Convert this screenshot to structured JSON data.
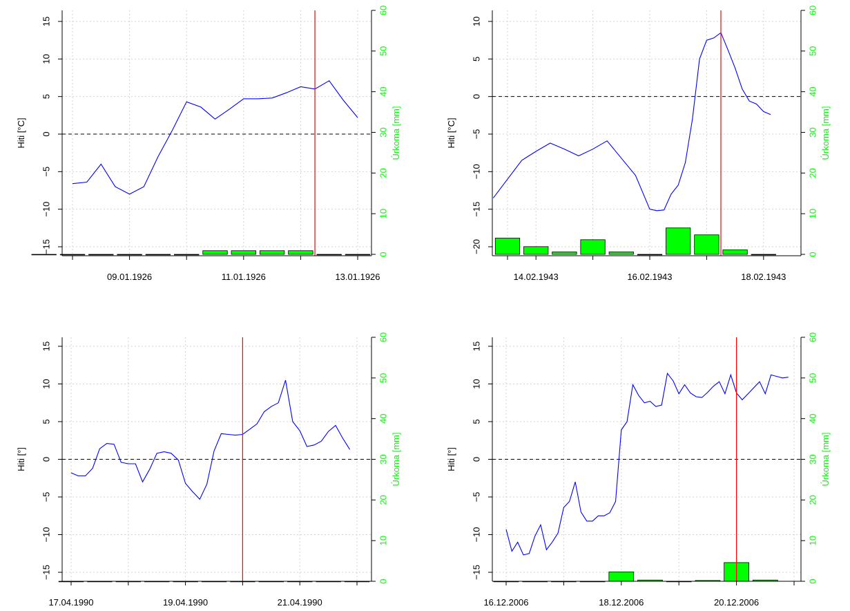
{
  "colors": {
    "temperature_line": "#0000ff",
    "precipitation_bar": "#00ff00",
    "precipitation_axis": "#00ff00",
    "event_marker": "#ff0000",
    "zero_line": "#000000",
    "grid": "#d3d3d3"
  },
  "chart_data": [
    {
      "type": "line",
      "ylabel": "Hiti [°C]",
      "y2label": "Úrkoma [mm]",
      "xlim": [
        0,
        60
      ],
      "ylim": [
        -16,
        16
      ],
      "y2lim": [
        0,
        60
      ],
      "xticks": [
        {
          "x": 12,
          "label": "09.01.1926"
        },
        {
          "x": 36,
          "label": "11.01.1926"
        },
        {
          "x": 60,
          "label": "13.01.1926"
        }
      ],
      "xgrid": [
        0,
        12,
        24,
        36,
        48,
        60
      ],
      "yticks": [
        -15,
        -10,
        -5,
        0,
        5,
        10,
        15
      ],
      "y2ticks": [
        0,
        10,
        20,
        30,
        40,
        50,
        60
      ],
      "marker_x": 51,
      "grid": true,
      "temperature": {
        "x": [
          0,
          3,
          6,
          9,
          12,
          15,
          18,
          21,
          24,
          27,
          30,
          33,
          36,
          39,
          42,
          45,
          48,
          51,
          54,
          57,
          60
        ],
        "y": [
          -6.6,
          -6.4,
          -4,
          -7,
          -8,
          -7,
          -3,
          0.5,
          4.3,
          3.6,
          2,
          3.3,
          4.7,
          4.7,
          4.8,
          5.5,
          6.3,
          6,
          7.1,
          4.5,
          2.2
        ]
      },
      "precipitation": {
        "x": [
          -6,
          0,
          6,
          12,
          18,
          24,
          30,
          36,
          42,
          48,
          54,
          60
        ],
        "y": [
          0,
          0,
          0,
          0,
          0,
          0,
          0.9,
          0.9,
          0.9,
          0.9,
          0,
          0
        ]
      }
    },
    {
      "type": "line",
      "ylabel": "Hiti [°C]",
      "y2label": "Úrkoma [mm]",
      "xlim": [
        0,
        60
      ],
      "ylim": [
        -21,
        11
      ],
      "y2lim": [
        0,
        60
      ],
      "xticks": [
        {
          "x": 6,
          "label": "14.02.1943"
        },
        {
          "x": 30,
          "label": "16.02.1943"
        },
        {
          "x": 54,
          "label": "18.02.1943"
        }
      ],
      "xgrid": [
        0,
        6,
        18,
        30,
        42,
        54
      ],
      "yticks": [
        -20,
        -15,
        -10,
        -5,
        0,
        5,
        10
      ],
      "y2ticks": [
        0,
        10,
        20,
        30,
        40,
        50,
        60
      ],
      "marker_x": 45,
      "grid": true,
      "temperature": {
        "x": [
          -3,
          0,
          3,
          6,
          9,
          12,
          15,
          18,
          21,
          24,
          27,
          30,
          31.5,
          33,
          34.5,
          36,
          37.5,
          39,
          40.5,
          42,
          43.5,
          45,
          46.5,
          48,
          49.5,
          51,
          52.5,
          54,
          55.5
        ],
        "y": [
          -13.5,
          -11,
          -8.5,
          -7.3,
          -6.2,
          -7,
          -7.9,
          -7,
          -5.9,
          -8.2,
          -10.5,
          -15,
          -15.2,
          -15.1,
          -13,
          -11.8,
          -8.8,
          -3,
          5,
          7.5,
          7.8,
          8.5,
          6.2,
          3.8,
          1,
          -0.6,
          -1,
          -2,
          -2.4
        ]
      },
      "precipitation": {
        "x": [
          0,
          6,
          12,
          18,
          24,
          30,
          36,
          42,
          48,
          54
        ],
        "y": [
          4,
          1.9,
          0.6,
          3.6,
          0.6,
          0,
          6.5,
          4.8,
          1.1,
          0
        ]
      }
    },
    {
      "type": "line",
      "ylabel": "Hiti [°]",
      "y2label": "Úrkoma [mm]",
      "xlim": [
        0,
        60
      ],
      "ylim": [
        -16,
        16
      ],
      "y2lim": [
        0,
        60
      ],
      "xticks": [
        {
          "x": 0,
          "label": "17.04.1990"
        },
        {
          "x": 24,
          "label": "19.04.1990"
        },
        {
          "x": 48,
          "label": "21.04.1990"
        }
      ],
      "xgrid": [
        0,
        12,
        24,
        36,
        48,
        60
      ],
      "yticks": [
        -15,
        -10,
        -5,
        0,
        5,
        10,
        15
      ],
      "y2ticks": [
        0,
        10,
        20,
        30,
        40,
        50,
        60
      ],
      "marker_x": 36,
      "grid": true,
      "temperature": {
        "x": [
          0,
          1.5,
          3,
          4.5,
          6,
          7.5,
          9,
          10.5,
          12,
          13.5,
          15,
          16.5,
          18,
          19.5,
          21,
          22.5,
          24,
          25.5,
          27,
          28.5,
          30,
          31.5,
          33,
          34.5,
          36,
          37.5,
          39,
          40.5,
          42,
          43.5,
          45,
          46.5,
          48,
          49.5,
          51,
          52.5,
          54,
          55.5,
          57,
          58.5
        ],
        "y": [
          -1.8,
          -2.2,
          -2.2,
          -1.2,
          1.4,
          2.1,
          2,
          -0.4,
          -0.6,
          -0.6,
          -3,
          -1.3,
          0.8,
          1,
          0.8,
          -0.1,
          -3.2,
          -4.3,
          -5.3,
          -3.3,
          1.1,
          3.4,
          3.3,
          3.2,
          3.3,
          4,
          4.7,
          6.3,
          7,
          7.5,
          10.5,
          5,
          3.8,
          1.7,
          1.9,
          2.4,
          3.7,
          4.5,
          2.8,
          1.3
        ]
      },
      "precipitation": {
        "x": [
          0,
          6,
          12,
          18,
          24,
          30,
          36,
          42,
          48,
          54,
          60
        ],
        "y": [
          0,
          0,
          0,
          0,
          0,
          0,
          0,
          0,
          0,
          0,
          0
        ]
      }
    },
    {
      "type": "line",
      "ylabel": "Hiti [°]",
      "y2label": "Úrkoma [mm]",
      "xlim": [
        0,
        60
      ],
      "ylim": [
        -16,
        16
      ],
      "y2lim": [
        0,
        60
      ],
      "xticks": [
        {
          "x": 0,
          "label": "16.12.2006"
        },
        {
          "x": 24,
          "label": "18.12.2006"
        },
        {
          "x": 48,
          "label": "20.12.2006"
        }
      ],
      "xgrid": [
        0,
        12,
        24,
        36,
        48,
        60
      ],
      "yticks": [
        -15,
        -10,
        -5,
        0,
        5,
        10,
        15
      ],
      "y2ticks": [
        0,
        10,
        20,
        30,
        40,
        50,
        60
      ],
      "marker_x": 48,
      "grid": true,
      "temperature": {
        "x": [
          0,
          1.2,
          2.4,
          3.6,
          4.8,
          6,
          7.2,
          8.4,
          9.6,
          10.8,
          12,
          13.2,
          14.4,
          15.6,
          16.8,
          18,
          19.2,
          20.4,
          21.6,
          22.8,
          24,
          25.2,
          26.4,
          27.6,
          28.8,
          30,
          31.2,
          32.4,
          33.6,
          34.8,
          36,
          37.2,
          38.4,
          39.6,
          40.8,
          42,
          43.2,
          44.4,
          45.6,
          46.8,
          48,
          49.2,
          50.4,
          51.6,
          52.8,
          54,
          55.2,
          56.4,
          57.6,
          58.8
        ],
        "y": [
          -9.3,
          -12.2,
          -11,
          -12.7,
          -12.5,
          -10.2,
          -8.7,
          -12,
          -11,
          -9.8,
          -6.4,
          -5.6,
          -3,
          -7,
          -8.2,
          -8.2,
          -7.5,
          -7.5,
          -7.1,
          -5.6,
          3.9,
          5,
          9.9,
          8.5,
          7.5,
          7.7,
          7,
          7.2,
          11.4,
          10.4,
          8.7,
          9.9,
          8.8,
          8.3,
          8.2,
          8.9,
          9.7,
          10.3,
          8.7,
          11.2,
          8.8,
          7.9,
          8.7,
          9.5,
          10.3,
          8.7,
          11.2,
          11.0,
          10.8,
          10.9
        ]
      },
      "precipitation": {
        "x": [
          0,
          6,
          12,
          18,
          24,
          30,
          36,
          42,
          48,
          54
        ],
        "y": [
          0,
          0,
          0,
          0,
          2.3,
          0.3,
          0,
          0.2,
          4.6,
          0.3
        ]
      }
    }
  ]
}
